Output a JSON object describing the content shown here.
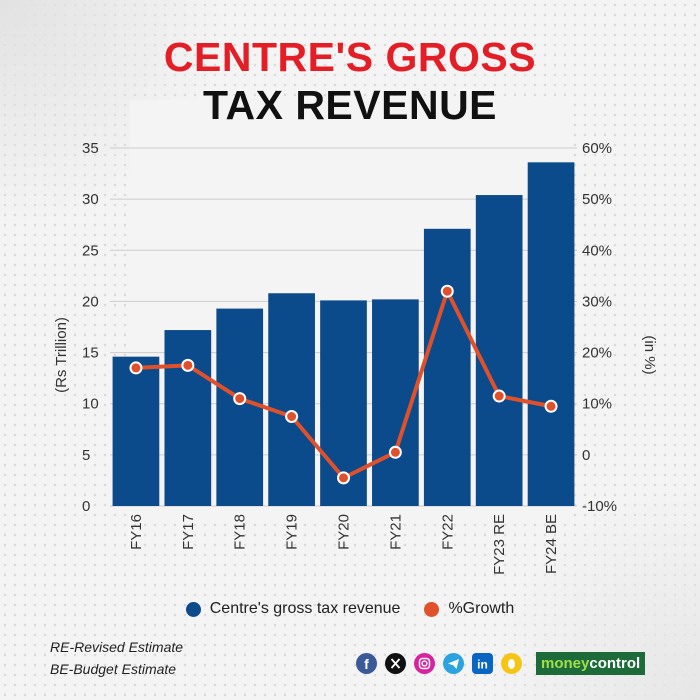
{
  "title": {
    "line1": "CENTRE'S GROSS",
    "line2": "TAX REVENUE"
  },
  "chart_data": {
    "type": "bar",
    "categories": [
      "FY16",
      "FY17",
      "FY18",
      "FY19",
      "FY20",
      "FY21",
      "FY22",
      "FY23 RE",
      "FY24 BE"
    ],
    "series": [
      {
        "name": "Centre's gross tax revenue",
        "type": "bar",
        "axis": "left",
        "values": [
          14.6,
          17.2,
          19.3,
          20.8,
          20.1,
          20.2,
          27.1,
          30.4,
          33.6
        ],
        "color": "#0b4a8b"
      },
      {
        "name": "%Growth",
        "type": "line",
        "axis": "right",
        "values": [
          17,
          17.5,
          11,
          7.5,
          -4.5,
          0.5,
          32,
          11.5,
          9.5
        ],
        "color": "#e0512b"
      }
    ],
    "ylabel": "(Rs Trillion)",
    "y2label": "(in %)",
    "ylim": [
      0,
      35
    ],
    "y2lim": [
      -10,
      60
    ],
    "yticks": [
      "0",
      "5",
      "10",
      "15",
      "20",
      "25",
      "30",
      "35"
    ],
    "y2ticks": [
      "-10%",
      "0",
      "10%",
      "20%",
      "30%",
      "40%",
      "50%",
      "60%"
    ],
    "grid": true,
    "legend": "bottom"
  },
  "notes": [
    "RE-Revised Estimate",
    "BE-Budget Estimate"
  ],
  "footer": {
    "brand_part1": "money",
    "brand_part2": "control"
  },
  "colors": {
    "title_accent": "#e41e26",
    "bar": "#0b4a8b",
    "line": "#e0512b"
  },
  "icons": [
    "facebook-icon",
    "x-icon",
    "instagram-icon",
    "telegram-icon",
    "linkedin-icon",
    "koo-icon"
  ]
}
